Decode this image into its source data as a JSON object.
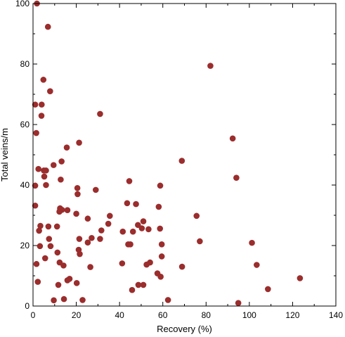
{
  "chart_data": {
    "type": "scatter",
    "xlabel": "Recovery (%)",
    "ylabel": "Total veins/m",
    "xlim": [
      0,
      140
    ],
    "ylim": [
      0,
      100
    ],
    "x_ticks": [
      0,
      20,
      40,
      60,
      80,
      100,
      120,
      140
    ],
    "y_ticks": [
      0,
      20,
      40,
      60,
      80,
      100
    ],
    "grid": false,
    "marker_color": "#9b2d2d",
    "points": [
      {
        "x": 1.8,
        "y": 100
      },
      {
        "x": 6.9,
        "y": 92.3
      },
      {
        "x": 82.0,
        "y": 79.4
      },
      {
        "x": 4.8,
        "y": 74.8
      },
      {
        "x": 7.9,
        "y": 71.0
      },
      {
        "x": 1.0,
        "y": 66.6
      },
      {
        "x": 4.0,
        "y": 66.6
      },
      {
        "x": 31.0,
        "y": 63.5
      },
      {
        "x": 3.9,
        "y": 62.9
      },
      {
        "x": 1.5,
        "y": 57.2
      },
      {
        "x": 92.3,
        "y": 55.4
      },
      {
        "x": 21.3,
        "y": 54.0
      },
      {
        "x": 15.6,
        "y": 52.4
      },
      {
        "x": 68.8,
        "y": 48.0
      },
      {
        "x": 13.2,
        "y": 47.8
      },
      {
        "x": 9.5,
        "y": 46.6
      },
      {
        "x": 2.5,
        "y": 45.3
      },
      {
        "x": 5.0,
        "y": 44.8
      },
      {
        "x": 6.0,
        "y": 44.8
      },
      {
        "x": 5.2,
        "y": 42.8
      },
      {
        "x": 94.0,
        "y": 42.4
      },
      {
        "x": 12.8,
        "y": 41.8
      },
      {
        "x": 44.5,
        "y": 41.3
      },
      {
        "x": 6.0,
        "y": 40.0
      },
      {
        "x": 1.0,
        "y": 39.8
      },
      {
        "x": 58.8,
        "y": 39.8
      },
      {
        "x": 20.5,
        "y": 39.0
      },
      {
        "x": 29.0,
        "y": 38.4
      },
      {
        "x": 20.6,
        "y": 37.0
      },
      {
        "x": 43.5,
        "y": 34.0
      },
      {
        "x": 47.6,
        "y": 33.7
      },
      {
        "x": 1.0,
        "y": 33.2
      },
      {
        "x": 58.1,
        "y": 32.8
      },
      {
        "x": 12.5,
        "y": 32.3
      },
      {
        "x": 13.4,
        "y": 31.8
      },
      {
        "x": 15.9,
        "y": 31.7
      },
      {
        "x": 12.2,
        "y": 31.2
      },
      {
        "x": 20.0,
        "y": 30.5
      },
      {
        "x": 35.5,
        "y": 29.8
      },
      {
        "x": 75.6,
        "y": 29.8
      },
      {
        "x": 25.3,
        "y": 28.9
      },
      {
        "x": 51.0,
        "y": 28.0
      },
      {
        "x": 34.8,
        "y": 27.2
      },
      {
        "x": 48.5,
        "y": 26.8
      },
      {
        "x": 3.4,
        "y": 26.5
      },
      {
        "x": 7.1,
        "y": 26.3
      },
      {
        "x": 11.1,
        "y": 26.3
      },
      {
        "x": 50.3,
        "y": 25.7
      },
      {
        "x": 58.7,
        "y": 25.6
      },
      {
        "x": 53.4,
        "y": 25.4
      },
      {
        "x": 2.8,
        "y": 24.9
      },
      {
        "x": 31.6,
        "y": 25.0
      },
      {
        "x": 41.5,
        "y": 24.6
      },
      {
        "x": 46.2,
        "y": 24.6
      },
      {
        "x": 27.1,
        "y": 22.5
      },
      {
        "x": 7.4,
        "y": 22.2
      },
      {
        "x": 21.4,
        "y": 22.2
      },
      {
        "x": 31.0,
        "y": 22.2
      },
      {
        "x": 77.1,
        "y": 21.4
      },
      {
        "x": 25.3,
        "y": 21.0
      },
      {
        "x": 101.2,
        "y": 20.9
      },
      {
        "x": 44.0,
        "y": 20.4
      },
      {
        "x": 45.0,
        "y": 20.4
      },
      {
        "x": 59.5,
        "y": 20.4
      },
      {
        "x": 3.2,
        "y": 19.8
      },
      {
        "x": 8.1,
        "y": 19.8
      },
      {
        "x": 21.1,
        "y": 18.6
      },
      {
        "x": 11.3,
        "y": 17.7
      },
      {
        "x": 21.6,
        "y": 17.2
      },
      {
        "x": 59.5,
        "y": 16.4
      },
      {
        "x": 5.6,
        "y": 15.8
      },
      {
        "x": 12.3,
        "y": 14.4
      },
      {
        "x": 54.1,
        "y": 14.4
      },
      {
        "x": 1.6,
        "y": 13.9
      },
      {
        "x": 14.1,
        "y": 13.4
      },
      {
        "x": 41.2,
        "y": 14.1
      },
      {
        "x": 52.5,
        "y": 13.7
      },
      {
        "x": 103.4,
        "y": 13.6
      },
      {
        "x": 26.5,
        "y": 12.9
      },
      {
        "x": 68.9,
        "y": 13.0
      },
      {
        "x": 57.5,
        "y": 10.8
      },
      {
        "x": 59.0,
        "y": 9.7
      },
      {
        "x": 123.4,
        "y": 9.2
      },
      {
        "x": 16.9,
        "y": 9.0
      },
      {
        "x": 15.9,
        "y": 8.5
      },
      {
        "x": 2.2,
        "y": 8.0
      },
      {
        "x": 20.2,
        "y": 7.6
      },
      {
        "x": 11.7,
        "y": 7.0
      },
      {
        "x": 48.7,
        "y": 7.0
      },
      {
        "x": 51.0,
        "y": 7.0
      },
      {
        "x": 108.6,
        "y": 5.6
      },
      {
        "x": 45.8,
        "y": 5.3
      },
      {
        "x": 14.3,
        "y": 2.3
      },
      {
        "x": 9.6,
        "y": 1.9
      },
      {
        "x": 22.9,
        "y": 2.0
      },
      {
        "x": 62.4,
        "y": 2.0
      },
      {
        "x": 94.9,
        "y": 1.0
      }
    ]
  }
}
